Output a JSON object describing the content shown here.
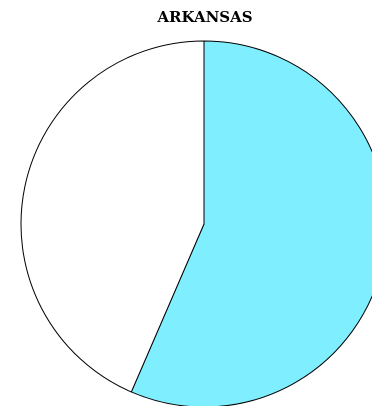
{
  "chart_data": {
    "type": "pie",
    "title": "ARKANSAS",
    "slices": [
      {
        "value": 56.5,
        "color": "#7FEEFF"
      },
      {
        "value": 43.5,
        "color": "#FFFFFF"
      }
    ],
    "start_angle_deg": 0,
    "direction": "clockwise",
    "legend": "none"
  }
}
